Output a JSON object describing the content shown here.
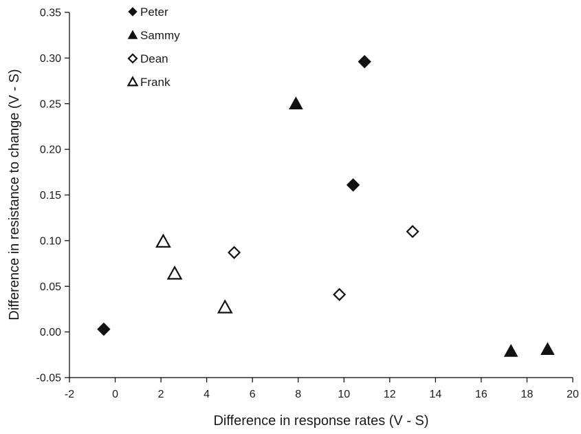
{
  "chart_data": {
    "type": "scatter",
    "xlabel": "Difference in response rates (V - S)",
    "ylabel": "Difference in resistance to change (V - S)",
    "xlim": [
      -2,
      20
    ],
    "ylim": [
      -0.05,
      0.35
    ],
    "xticks": [
      -2,
      0,
      2,
      4,
      6,
      8,
      10,
      12,
      14,
      16,
      18,
      20
    ],
    "yticks": [
      -0.05,
      0.0,
      0.05,
      0.1,
      0.15,
      0.2,
      0.25,
      0.3,
      0.35
    ],
    "ytick_labels": [
      "-0.05",
      "0.00",
      "0.05",
      "0.10",
      "0.15",
      "0.20",
      "0.25",
      "0.30",
      "0.35"
    ],
    "grid": false,
    "legend_position": "top-left",
    "series": [
      {
        "name": "Peter",
        "marker": "diamond-filled",
        "color": "#111111",
        "points": [
          [
            -0.5,
            0.003
          ],
          [
            10.4,
            0.161
          ],
          [
            10.9,
            0.296
          ]
        ]
      },
      {
        "name": "Sammy",
        "marker": "triangle-filled",
        "color": "#111111",
        "points": [
          [
            7.9,
            0.25
          ],
          [
            17.3,
            -0.021
          ],
          [
            18.9,
            -0.019
          ]
        ]
      },
      {
        "name": "Dean",
        "marker": "diamond-open",
        "color": "#111111",
        "points": [
          [
            5.2,
            0.087
          ],
          [
            9.8,
            0.041
          ],
          [
            13.0,
            0.11
          ]
        ]
      },
      {
        "name": "Frank",
        "marker": "triangle-open",
        "color": "#111111",
        "points": [
          [
            2.1,
            0.099
          ],
          [
            2.6,
            0.064
          ],
          [
            4.8,
            0.027
          ]
        ]
      }
    ]
  }
}
